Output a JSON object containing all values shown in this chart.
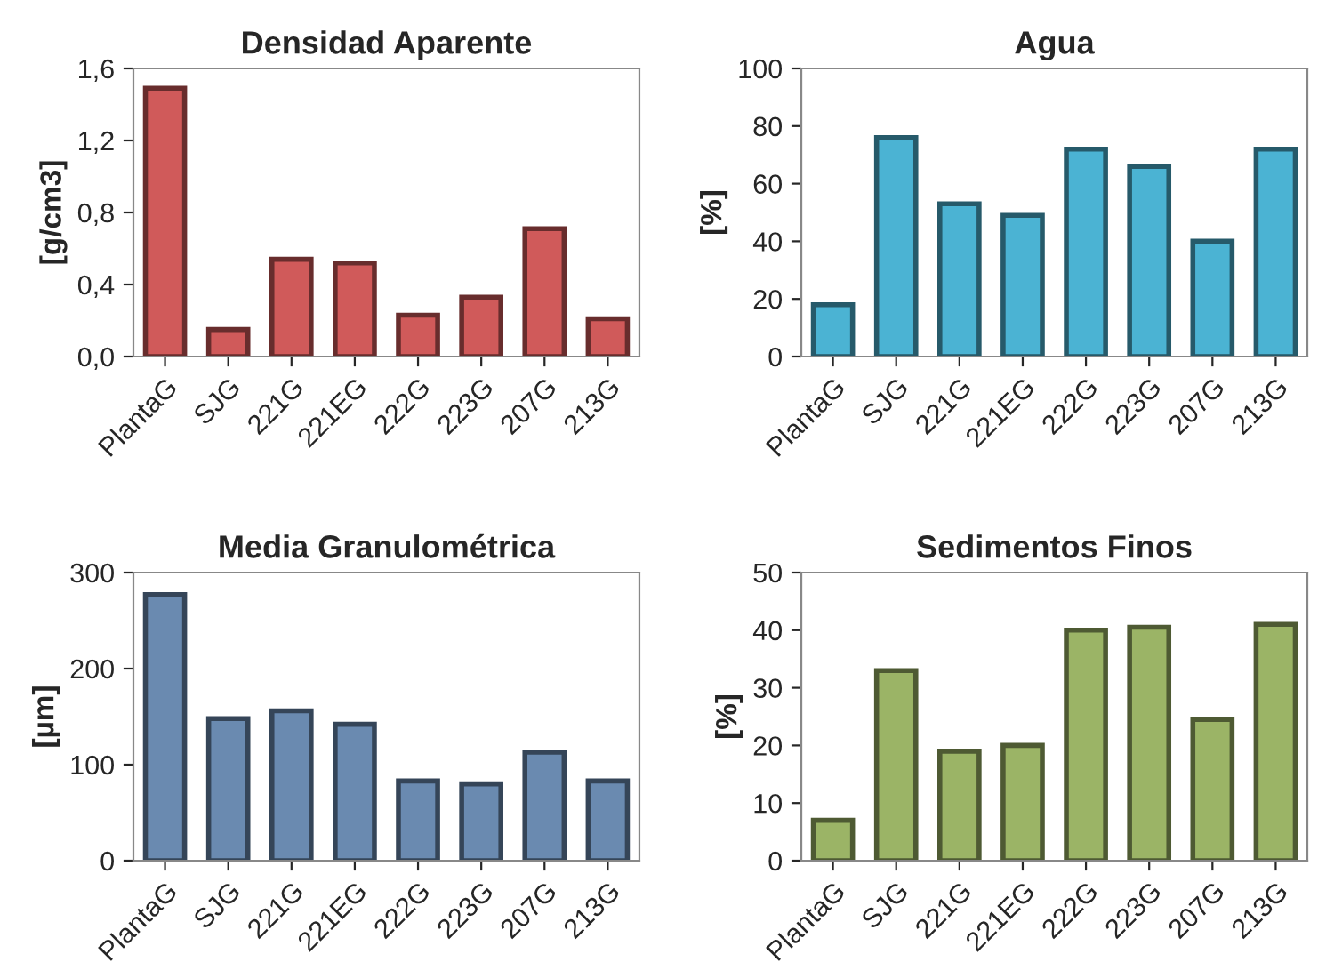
{
  "chart_data": [
    {
      "type": "bar",
      "title": "Densidad Aparente",
      "ylabel": "[g/cm3]",
      "categories": [
        "PlantaG",
        "SJG",
        "221G",
        "221EG",
        "222G",
        "223G",
        "207G",
        "213G"
      ],
      "values": [
        1.49,
        0.15,
        0.54,
        0.52,
        0.23,
        0.33,
        0.71,
        0.21
      ],
      "color": "#d05a5a",
      "ylim": [
        0,
        1.6
      ],
      "yticks": [
        {
          "value": 0,
          "label": "0,0"
        },
        {
          "value": 0.4,
          "label": "0,4"
        },
        {
          "value": 0.8,
          "label": "0,8"
        },
        {
          "value": 1.2,
          "label": "1,2"
        },
        {
          "value": 1.6,
          "label": "1,6"
        }
      ],
      "grid": false,
      "legend": false
    },
    {
      "type": "bar",
      "title": "Agua",
      "ylabel": "[%]",
      "categories": [
        "PlantaG",
        "SJG",
        "221G",
        "221EG",
        "222G",
        "223G",
        "207G",
        "213G"
      ],
      "values": [
        18,
        76,
        53,
        49,
        72,
        66,
        40,
        72
      ],
      "color": "#4bb3d3",
      "ylim": [
        0,
        100
      ],
      "yticks": [
        0,
        20,
        40,
        60,
        80,
        100
      ],
      "grid": false,
      "legend": false
    },
    {
      "type": "bar",
      "title": "Media Granulométrica",
      "ylabel": "[µm]",
      "categories": [
        "PlantaG",
        "SJG",
        "221G",
        "221EG",
        "222G",
        "223G",
        "207G",
        "213G"
      ],
      "values": [
        277,
        148,
        156,
        142,
        83,
        80,
        113,
        83
      ],
      "color": "#6a8ab0",
      "ylim": [
        0,
        300
      ],
      "yticks": [
        0,
        100,
        200,
        300
      ],
      "grid": false,
      "legend": false
    },
    {
      "type": "bar",
      "title": "Sedimentos Finos",
      "ylabel": "[%]",
      "categories": [
        "PlantaG",
        "SJG",
        "221G",
        "221EG",
        "222G",
        "223G",
        "207G",
        "213G"
      ],
      "values": [
        7,
        33,
        19,
        20,
        40,
        40.5,
        24.5,
        41
      ],
      "color": "#9bb466",
      "ylim": [
        0,
        50
      ],
      "yticks": [
        0,
        10,
        20,
        30,
        40,
        50
      ],
      "grid": false,
      "legend": false
    }
  ]
}
